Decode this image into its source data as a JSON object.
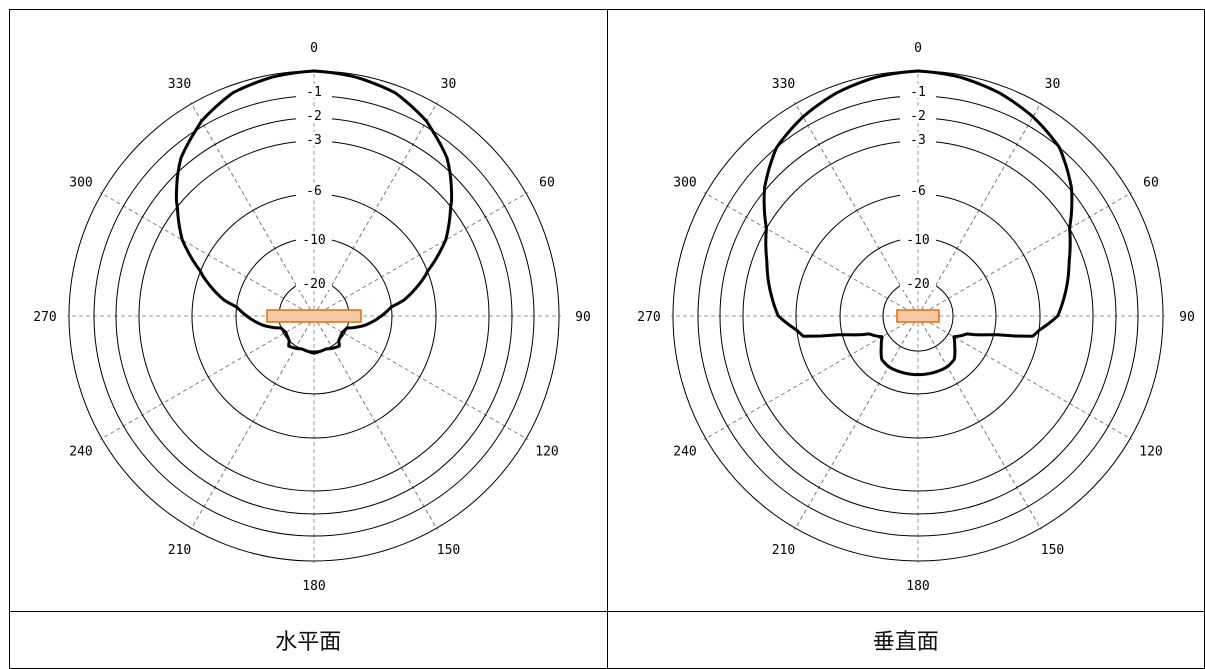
{
  "captions": [
    "水平面",
    "垂直面"
  ],
  "chart_data": [
    {
      "type": "polar",
      "title": "水平面",
      "angle_ticks": [
        "0",
        "30",
        "60",
        "90",
        "120",
        "150",
        "180",
        "210",
        "240",
        "270",
        "300",
        "330"
      ],
      "radial_ticks": [
        "-1",
        "-2",
        "-3",
        "-6",
        "-10",
        "-20"
      ],
      "ring_levels_db": [
        0,
        -1,
        -2,
        -3,
        -6,
        -10,
        -20
      ],
      "series": [
        {
          "points": [
            [
              0,
              0
            ],
            [
              10,
              -0.1
            ],
            [
              20,
              -0.3
            ],
            [
              30,
              -0.8
            ],
            [
              40,
              -1.6
            ],
            [
              50,
              -2.8
            ],
            [
              60,
              -4.3
            ],
            [
              70,
              -6.3
            ],
            [
              80,
              -8.8
            ],
            [
              90,
              -12.5
            ],
            [
              100,
              -16
            ],
            [
              110,
              -20
            ],
            [
              120,
              -22
            ],
            [
              130,
              -21
            ],
            [
              140,
              -19
            ],
            [
              150,
              -19.5
            ],
            [
              160,
              -20
            ],
            [
              170,
              -19.8
            ],
            [
              180,
              -19.5
            ],
            [
              190,
              -19.8
            ],
            [
              200,
              -20
            ],
            [
              210,
              -19.5
            ],
            [
              220,
              -19
            ],
            [
              230,
              -21
            ],
            [
              240,
              -22
            ],
            [
              250,
              -20
            ],
            [
              260,
              -16
            ],
            [
              270,
              -12.5
            ],
            [
              280,
              -8.8
            ],
            [
              290,
              -6.3
            ],
            [
              300,
              -4.3
            ],
            [
              310,
              -2.8
            ],
            [
              320,
              -1.6
            ],
            [
              330,
              -0.8
            ],
            [
              340,
              -0.3
            ],
            [
              350,
              -0.1
            ],
            [
              360,
              0
            ]
          ]
        }
      ]
    },
    {
      "type": "polar",
      "title": "垂直面",
      "angle_ticks": [
        "0",
        "30",
        "60",
        "90",
        "120",
        "150",
        "180",
        "210",
        "240",
        "270",
        "300",
        "330"
      ],
      "radial_ticks": [
        "-1",
        "-2",
        "-3",
        "-6",
        "-10",
        "-20"
      ],
      "ring_levels_db": [
        0,
        -1,
        -2,
        -3,
        -6,
        -10,
        -20
      ],
      "series": [
        {
          "points": [
            [
              0,
              0
            ],
            [
              10,
              -0.1
            ],
            [
              20,
              -0.3
            ],
            [
              30,
              -0.6
            ],
            [
              40,
              -1.0
            ],
            [
              50,
              -1.9
            ],
            [
              60,
              -3.0
            ],
            [
              70,
              -3.8
            ],
            [
              80,
              -4.4
            ],
            [
              90,
              -5.0
            ],
            [
              100,
              -6.5
            ],
            [
              110,
              -16
            ],
            [
              120,
              -18.5
            ],
            [
              130,
              -17
            ],
            [
              140,
              -15
            ],
            [
              150,
              -14.5
            ],
            [
              160,
              -14.5
            ],
            [
              170,
              -14.5
            ],
            [
              180,
              -14.5
            ],
            [
              190,
              -14.5
            ],
            [
              200,
              -14.5
            ],
            [
              210,
              -14.5
            ],
            [
              220,
              -15
            ],
            [
              230,
              -17
            ],
            [
              240,
              -18.5
            ],
            [
              250,
              -16
            ],
            [
              260,
              -6.5
            ],
            [
              270,
              -5.0
            ],
            [
              280,
              -4.4
            ],
            [
              290,
              -3.8
            ],
            [
              300,
              -3.0
            ],
            [
              310,
              -1.9
            ],
            [
              320,
              -1.0
            ],
            [
              330,
              -0.6
            ],
            [
              340,
              -0.3
            ],
            [
              350,
              -0.1
            ],
            [
              360,
              0
            ]
          ]
        }
      ]
    }
  ]
}
